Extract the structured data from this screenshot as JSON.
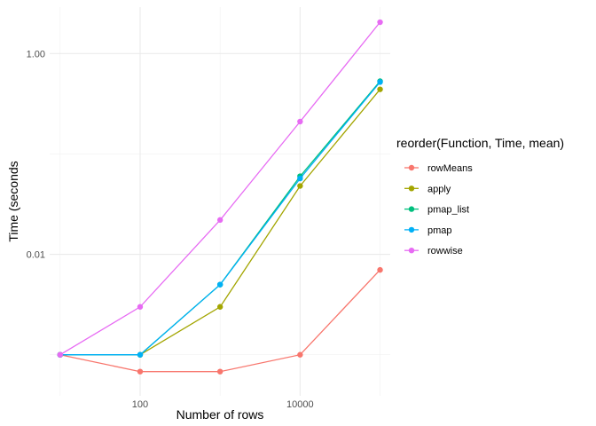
{
  "chart_data": {
    "type": "line",
    "xlabel": "Number of rows",
    "ylabel": "Time (seconds",
    "x_scale": "log10",
    "y_scale": "log10",
    "x": [
      10,
      100,
      1000,
      10000,
      100000
    ],
    "xlim": [
      7.4,
      134000
    ],
    "ylim": [
      0.00039,
      2.9
    ],
    "x_ticks": [
      100,
      10000
    ],
    "x_tick_labels": [
      "100",
      "10000"
    ],
    "y_ticks": [
      0.01,
      1.0
    ],
    "y_tick_labels": [
      "0.01",
      "1.00"
    ],
    "grid": true,
    "legend": {
      "title": "reorder(Function, Time, mean)",
      "position": "right"
    },
    "series": [
      {
        "name": "rowMeans",
        "color": "#F8766D",
        "values": [
          0.001,
          0.00068,
          0.00068,
          0.001,
          0.007
        ]
      },
      {
        "name": "apply",
        "color": "#A3A500",
        "values": [
          0.001,
          0.001,
          0.003,
          0.048,
          0.44
        ]
      },
      {
        "name": "pmap_list",
        "color": "#00BF7D",
        "values": [
          0.001,
          0.001,
          0.005,
          0.06,
          0.53
        ]
      },
      {
        "name": "pmap",
        "color": "#00B0F6",
        "values": [
          0.001,
          0.001,
          0.005,
          0.057,
          0.52
        ]
      },
      {
        "name": "rowwise",
        "color": "#E76BF3",
        "values": [
          0.001,
          0.003,
          0.022,
          0.21,
          2.05
        ]
      }
    ]
  }
}
